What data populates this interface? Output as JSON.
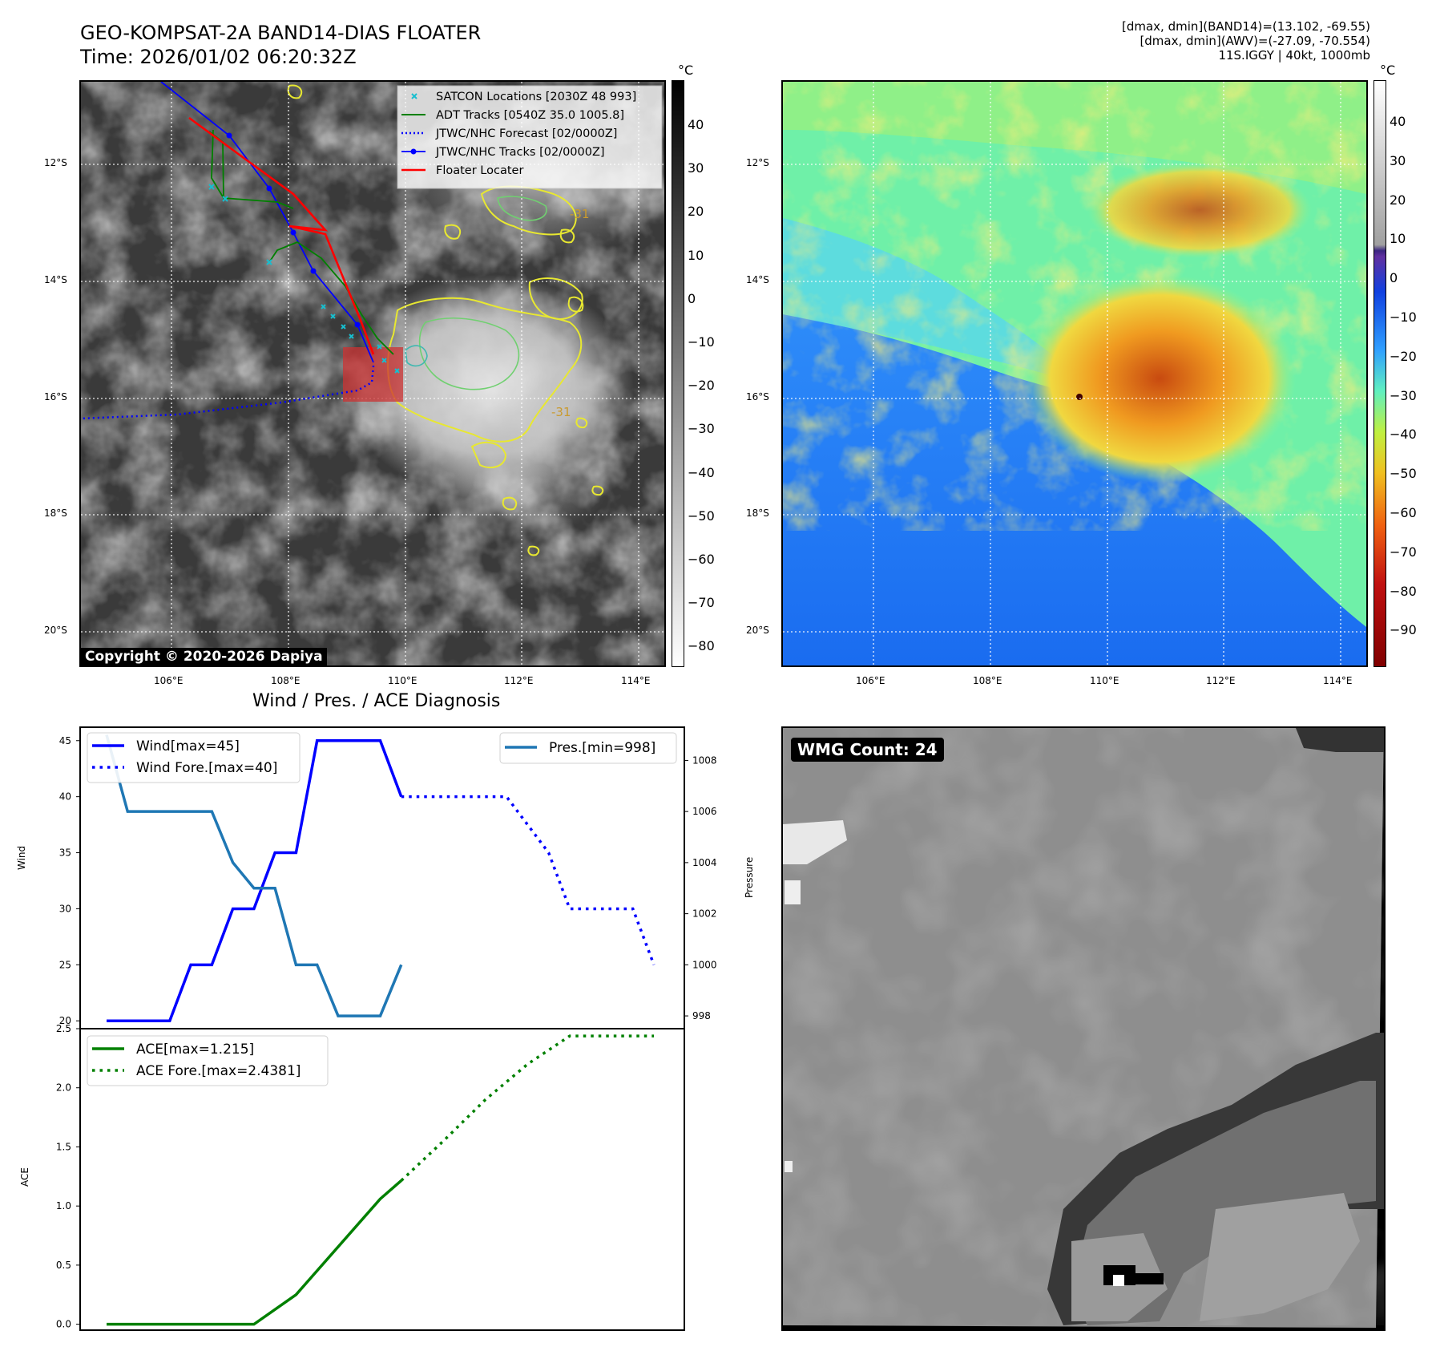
{
  "header": {
    "title_line1": "GEO-KOMPSAT-2A BAND14-DIAS FLOATER",
    "title_line2": "Time: 2026/01/02 06:20:32Z",
    "info_line1": "[dmax, dmin](BAND14)=(13.102, -69.55)",
    "info_line2": "[dmax, dmin](AWV)=(-27.09, -70.554)",
    "info_line3": "11S.IGGY | 40kt, 1000mb"
  },
  "map": {
    "lat_labels": [
      "12°S",
      "14°S",
      "16°S",
      "18°S",
      "20°S"
    ],
    "lon_labels": [
      "106°E",
      "108°E",
      "110°E",
      "112°E",
      "114°E"
    ],
    "contour_label": "-31",
    "copyright": "Copyright © 2020-2026 Dapiya",
    "legend": [
      {
        "label": "SATCON Locations [2030Z 48 993]",
        "color": "#17becf",
        "style": "x"
      },
      {
        "label": "ADT Tracks [0540Z 35.0 1005.8]",
        "color": "#008000",
        "style": "solid"
      },
      {
        "label": "JTWC/NHC Forecast [02/0000Z]",
        "color": "#0000ff",
        "style": "dotted"
      },
      {
        "label": "JTWC/NHC Tracks [02/0000Z]",
        "color": "#0000ff",
        "style": "solid-dot"
      },
      {
        "label": "Floater Locater",
        "color": "#ff0000",
        "style": "solid"
      }
    ]
  },
  "colorbars": {
    "unit": "°C",
    "gray_ticks": [
      "40",
      "30",
      "20",
      "10",
      "0",
      "−10",
      "−20",
      "−30",
      "−40",
      "−50",
      "−60",
      "−70",
      "−80"
    ],
    "color_ticks": [
      "40",
      "30",
      "20",
      "10",
      "0",
      "−10",
      "−20",
      "−30",
      "−40",
      "−50",
      "−60",
      "−70",
      "−80",
      "−90"
    ]
  },
  "diagnosis": {
    "title": "Wind / Pres. / ACE Diagnosis",
    "wind_ylabel": "Wind",
    "pres_ylabel": "Pressure",
    "ace_ylabel": "ACE",
    "legend_wind": "Wind[max=45]",
    "legend_wind_fore": "Wind Fore.[max=40]",
    "legend_pres": "Pres.[min=998]",
    "legend_ace": "ACE[max=1.215]",
    "legend_ace_fore": "ACE Fore.[max=2.4381]"
  },
  "chart_data": [
    {
      "type": "line",
      "title": "Wind / Pres. / ACE Diagnosis",
      "ylabel": "Wind",
      "ylim": [
        19.3,
        46.2
      ],
      "y_ticks": [
        20,
        25,
        30,
        35,
        40,
        45
      ],
      "series": [
        {
          "name": "Wind[max=45]",
          "color": "#0000ff",
          "style": "solid",
          "x": [
            0,
            1,
            2,
            3,
            4,
            5,
            6,
            7,
            8,
            9,
            10,
            11,
            12,
            13,
            14
          ],
          "values": [
            20,
            20,
            20,
            20,
            25,
            25,
            30,
            30,
            35,
            35,
            45,
            45,
            45,
            45,
            40
          ]
        },
        {
          "name": "Wind Fore.[max=40]",
          "color": "#0000ff",
          "style": "dotted",
          "x": [
            14,
            15,
            16,
            17,
            18,
            19,
            20,
            21,
            22,
            23,
            24,
            25,
            26
          ],
          "values": [
            40,
            40,
            40,
            40,
            40,
            40,
            37.5,
            35,
            30,
            30,
            30,
            30,
            25
          ]
        }
      ]
    },
    {
      "type": "line",
      "ylabel": "Pressure",
      "ylim": [
        997.5,
        1009.3
      ],
      "y_ticks": [
        998,
        1000,
        1002,
        1004,
        1006,
        1008
      ],
      "series": [
        {
          "name": "Pres.[min=998]",
          "color": "#1f77b4",
          "style": "solid",
          "x": [
            0,
            1,
            2,
            3,
            4,
            5,
            6,
            7,
            8,
            9,
            10,
            11,
            12,
            13,
            14
          ],
          "values": [
            1009,
            1006,
            1006,
            1006,
            1006,
            1006,
            1004,
            1003,
            1003,
            1000,
            1000,
            998,
            998,
            998,
            1000
          ]
        }
      ]
    },
    {
      "type": "line",
      "ylabel": "ACE",
      "ylim": [
        -0.05,
        2.5
      ],
      "y_ticks": [
        0.0,
        0.5,
        1.0,
        1.5,
        2.0,
        2.5
      ],
      "y_tick_labels": [
        "0.0",
        "0.5",
        "1.0",
        "1.5",
        "2.0",
        "2.5"
      ],
      "series": [
        {
          "name": "ACE[max=1.215]",
          "color": "#008000",
          "style": "solid",
          "x": [
            0,
            7,
            9,
            13,
            14
          ],
          "values": [
            0,
            0,
            0.25,
            1.06,
            1.215
          ]
        },
        {
          "name": "ACE Fore.[max=2.4381]",
          "color": "#008000",
          "style": "dotted",
          "x": [
            14,
            16,
            18,
            20,
            22,
            24,
            26
          ],
          "values": [
            1.215,
            1.55,
            1.9,
            2.2,
            2.4381,
            2.4381,
            2.4381
          ]
        }
      ]
    }
  ],
  "wmg": {
    "label": "WMG Count: 24"
  }
}
